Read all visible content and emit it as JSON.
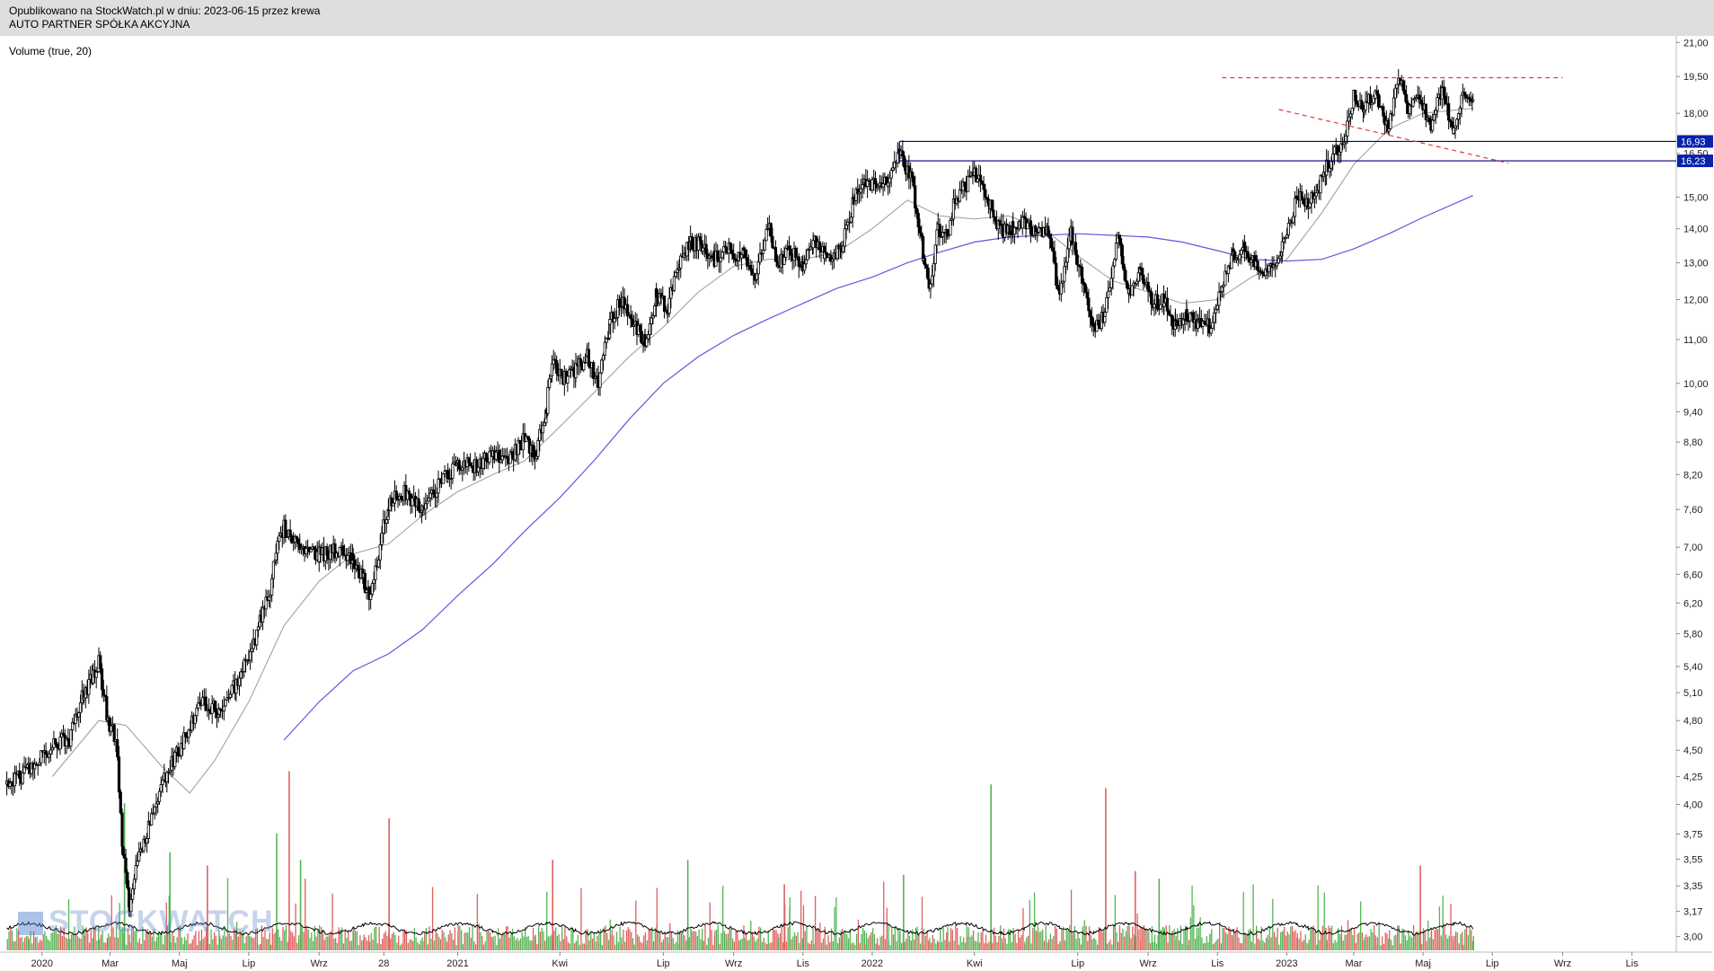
{
  "header": {
    "line1": "Opublikowano na StockWatch.pl w dniu: 2023-06-15 przez krewa",
    "line2": "AUTO PARTNER SPÓŁKA AKCYJNA"
  },
  "indicator_label": "Volume (true, 20)",
  "watermark": "STOCKWATCH",
  "colors": {
    "candle": "#000000",
    "sma_short": "#9a9a9a",
    "sma_long": "#5a5ae0",
    "level_line": "#00007a",
    "resistance_dash": "#e03a3a",
    "volume_up": "#55b555",
    "volume_down": "#e06060",
    "price_label_bg": "#0a22a8"
  },
  "chart_data": {
    "type": "candlestick",
    "price_axis": {
      "scale": "log",
      "range": [
        2.9,
        21.3
      ],
      "ticks": [
        "21,00",
        "19,50",
        "18,00",
        "16,50",
        "15,00",
        "14,00",
        "13,00",
        "12,00",
        "11,00",
        "10,00",
        "9,40",
        "8,80",
        "8,20",
        "7,60",
        "7,00",
        "6,60",
        "6,20",
        "5,80",
        "5,40",
        "5,10",
        "4,80",
        "4,50",
        "4,25",
        "4,00",
        "3,75",
        "3,55",
        "3,35",
        "3,17",
        "3,00"
      ]
    },
    "time_axis": {
      "ticks": [
        "2020",
        "Mar",
        "Maj",
        "Lip",
        "Wrz",
        "28",
        "2021",
        "Kwi",
        "Lip",
        "Wrz",
        "Lis",
        "2022",
        "Kwi",
        "Lip",
        "Wrz",
        "Lis",
        "2023",
        "Mar",
        "Maj",
        "Lip",
        "Wrz",
        "Lis"
      ]
    },
    "price_path": [
      [
        "2019-12-01",
        4.18
      ],
      [
        "2019-12-20",
        4.3
      ],
      [
        "2020-01-10",
        4.55
      ],
      [
        "2020-01-25",
        4.62
      ],
      [
        "2020-02-07",
        5.1
      ],
      [
        "2020-02-15",
        5.3
      ],
      [
        "2020-02-20",
        5.45
      ],
      [
        "2020-02-28",
        4.8
      ],
      [
        "2020-03-06",
        4.6
      ],
      [
        "2020-03-12",
        3.6
      ],
      [
        "2020-03-18",
        3.22
      ],
      [
        "2020-03-25",
        3.55
      ],
      [
        "2020-04-05",
        3.85
      ],
      [
        "2020-04-20",
        4.3
      ],
      [
        "2020-05-05",
        4.6
      ],
      [
        "2020-05-20",
        5.0
      ],
      [
        "2020-06-05",
        4.9
      ],
      [
        "2020-06-20",
        5.2
      ],
      [
        "2020-07-01",
        5.5
      ],
      [
        "2020-07-12",
        6.0
      ],
      [
        "2020-07-20",
        6.4
      ],
      [
        "2020-07-25",
        6.9
      ],
      [
        "2020-08-01",
        7.3
      ],
      [
        "2020-08-15",
        6.95
      ],
      [
        "2020-09-01",
        6.9
      ],
      [
        "2020-09-15",
        6.95
      ],
      [
        "2020-10-01",
        6.85
      ],
      [
        "2020-10-10",
        6.5
      ],
      [
        "2020-10-15",
        6.3
      ],
      [
        "2020-10-22",
        6.8
      ],
      [
        "2020-11-01",
        7.7
      ],
      [
        "2020-11-15",
        7.9
      ],
      [
        "2020-12-01",
        7.6
      ],
      [
        "2020-12-15",
        8.0
      ],
      [
        "2021-01-01",
        8.4
      ],
      [
        "2021-01-15",
        8.35
      ],
      [
        "2021-02-01",
        8.6
      ],
      [
        "2021-02-15",
        8.5
      ],
      [
        "2021-03-01",
        8.85
      ],
      [
        "2021-03-10",
        8.55
      ],
      [
        "2021-03-20",
        9.45
      ],
      [
        "2021-03-25",
        10.5
      ],
      [
        "2021-04-05",
        10.1
      ],
      [
        "2021-04-15",
        10.3
      ],
      [
        "2021-04-25",
        10.6
      ],
      [
        "2021-05-05",
        10.0
      ],
      [
        "2021-05-15",
        11.4
      ],
      [
        "2021-05-25",
        12.0
      ],
      [
        "2021-06-05",
        11.3
      ],
      [
        "2021-06-15",
        11.0
      ],
      [
        "2021-06-25",
        12.1
      ],
      [
        "2021-07-05",
        11.8
      ],
      [
        "2021-07-15",
        12.9
      ],
      [
        "2021-07-25",
        13.6
      ],
      [
        "2021-08-05",
        13.5
      ],
      [
        "2021-08-15",
        13.1
      ],
      [
        "2021-08-25",
        13.4
      ],
      [
        "2021-09-10",
        13.2
      ],
      [
        "2021-09-20",
        12.7
      ],
      [
        "2021-10-01",
        14.1
      ],
      [
        "2021-10-10",
        13.0
      ],
      [
        "2021-10-20",
        13.4
      ],
      [
        "2021-11-01",
        12.8
      ],
      [
        "2021-11-10",
        13.6
      ],
      [
        "2021-11-20",
        13.2
      ],
      [
        "2021-12-05",
        13.4
      ],
      [
        "2021-12-15",
        14.8
      ],
      [
        "2021-12-25",
        15.6
      ],
      [
        "2022-01-05",
        15.3
      ],
      [
        "2022-01-15",
        15.5
      ],
      [
        "2022-01-25",
        16.6
      ],
      [
        "2022-02-05",
        15.5
      ],
      [
        "2022-02-15",
        13.2
      ],
      [
        "2022-02-20",
        12.2
      ],
      [
        "2022-02-28",
        14.0
      ],
      [
        "2022-03-08",
        13.8
      ],
      [
        "2022-03-15",
        15.0
      ],
      [
        "2022-03-25",
        15.4
      ],
      [
        "2022-04-05",
        15.9
      ],
      [
        "2022-04-15",
        14.7
      ],
      [
        "2022-04-25",
        13.9
      ],
      [
        "2022-05-05",
        14.0
      ],
      [
        "2022-05-15",
        14.2
      ],
      [
        "2022-05-25",
        13.8
      ],
      [
        "2022-06-05",
        13.9
      ],
      [
        "2022-06-15",
        12.0
      ],
      [
        "2022-06-25",
        13.9
      ],
      [
        "2022-07-05",
        12.5
      ],
      [
        "2022-07-15",
        11.2
      ],
      [
        "2022-07-25",
        11.6
      ],
      [
        "2022-08-05",
        13.8
      ],
      [
        "2022-08-15",
        12.2
      ],
      [
        "2022-08-25",
        12.7
      ],
      [
        "2022-09-05",
        11.9
      ],
      [
        "2022-09-15",
        12.0
      ],
      [
        "2022-09-25",
        11.3
      ],
      [
        "2022-10-05",
        11.6
      ],
      [
        "2022-10-15",
        11.4
      ],
      [
        "2022-10-25",
        11.3
      ],
      [
        "2022-11-05",
        12.3
      ],
      [
        "2022-11-15",
        13.2
      ],
      [
        "2022-11-25",
        13.4
      ],
      [
        "2022-12-05",
        13.0
      ],
      [
        "2022-12-15",
        12.8
      ],
      [
        "2022-12-28",
        13.4
      ],
      [
        "2023-01-10",
        15.0
      ],
      [
        "2023-01-20",
        14.8
      ],
      [
        "2023-01-28",
        15.2
      ],
      [
        "2023-02-05",
        16.0
      ],
      [
        "2023-02-15",
        16.7
      ],
      [
        "2023-02-22",
        17.3
      ],
      [
        "2023-03-01",
        18.7
      ],
      [
        "2023-03-10",
        18.2
      ],
      [
        "2023-03-20",
        18.8
      ],
      [
        "2023-04-01",
        17.4
      ],
      [
        "2023-04-08",
        19.5
      ],
      [
        "2023-04-18",
        18.3
      ],
      [
        "2023-04-28",
        18.6
      ],
      [
        "2023-05-08",
        17.6
      ],
      [
        "2023-05-18",
        18.9
      ],
      [
        "2023-05-28",
        17.2
      ],
      [
        "2023-06-05",
        18.6
      ],
      [
        "2023-06-14",
        18.8
      ]
    ],
    "sma_short_path": [
      [
        "2020-01-10",
        4.25
      ],
      [
        "2020-02-20",
        4.8
      ],
      [
        "2020-03-15",
        4.75
      ],
      [
        "2020-04-15",
        4.35
      ],
      [
        "2020-05-10",
        4.1
      ],
      [
        "2020-06-01",
        4.4
      ],
      [
        "2020-07-01",
        5.0
      ],
      [
        "2020-08-01",
        5.9
      ],
      [
        "2020-09-01",
        6.5
      ],
      [
        "2020-10-01",
        6.9
      ],
      [
        "2020-11-01",
        7.05
      ],
      [
        "2020-12-01",
        7.5
      ],
      [
        "2021-01-01",
        7.9
      ],
      [
        "2021-02-01",
        8.2
      ],
      [
        "2021-03-01",
        8.45
      ],
      [
        "2021-04-01",
        9.1
      ],
      [
        "2021-05-01",
        9.8
      ],
      [
        "2021-06-01",
        10.6
      ],
      [
        "2021-07-01",
        11.3
      ],
      [
        "2021-08-01",
        12.2
      ],
      [
        "2021-09-01",
        12.9
      ],
      [
        "2021-10-01",
        13.1
      ],
      [
        "2021-11-01",
        13.1
      ],
      [
        "2021-12-01",
        13.3
      ],
      [
        "2022-01-01",
        14.0
      ],
      [
        "2022-02-01",
        14.9
      ],
      [
        "2022-03-01",
        14.4
      ],
      [
        "2022-04-01",
        14.3
      ],
      [
        "2022-05-01",
        14.4
      ],
      [
        "2022-06-01",
        14.0
      ],
      [
        "2022-07-01",
        13.2
      ],
      [
        "2022-08-01",
        12.5
      ],
      [
        "2022-09-01",
        12.2
      ],
      [
        "2022-10-01",
        11.9
      ],
      [
        "2022-11-01",
        12.0
      ],
      [
        "2022-12-01",
        12.6
      ],
      [
        "2023-01-01",
        13.1
      ],
      [
        "2023-02-01",
        14.5
      ],
      [
        "2023-03-01",
        16.1
      ],
      [
        "2023-04-01",
        17.4
      ],
      [
        "2023-05-01",
        18.0
      ],
      [
        "2023-06-14",
        18.2
      ]
    ],
    "sma_long_path": [
      [
        "2020-08-01",
        4.6
      ],
      [
        "2020-09-01",
        5.0
      ],
      [
        "2020-10-01",
        5.35
      ],
      [
        "2020-11-01",
        5.55
      ],
      [
        "2020-12-01",
        5.85
      ],
      [
        "2021-01-01",
        6.3
      ],
      [
        "2021-02-01",
        6.75
      ],
      [
        "2021-03-01",
        7.25
      ],
      [
        "2021-04-01",
        7.8
      ],
      [
        "2021-05-01",
        8.45
      ],
      [
        "2021-06-01",
        9.25
      ],
      [
        "2021-07-01",
        10.0
      ],
      [
        "2021-08-01",
        10.6
      ],
      [
        "2021-09-01",
        11.1
      ],
      [
        "2021-10-01",
        11.5
      ],
      [
        "2021-11-01",
        11.9
      ],
      [
        "2021-12-01",
        12.3
      ],
      [
        "2022-01-01",
        12.6
      ],
      [
        "2022-02-01",
        13.0
      ],
      [
        "2022-03-01",
        13.3
      ],
      [
        "2022-04-01",
        13.6
      ],
      [
        "2022-05-01",
        13.75
      ],
      [
        "2022-06-01",
        13.8
      ],
      [
        "2022-07-01",
        13.85
      ],
      [
        "2022-08-01",
        13.8
      ],
      [
        "2022-09-01",
        13.75
      ],
      [
        "2022-10-01",
        13.6
      ],
      [
        "2022-11-01",
        13.35
      ],
      [
        "2022-12-01",
        13.1
      ],
      [
        "2023-01-01",
        13.05
      ],
      [
        "2023-02-01",
        13.1
      ],
      [
        "2023-03-01",
        13.4
      ],
      [
        "2023-04-01",
        13.85
      ],
      [
        "2023-05-01",
        14.35
      ],
      [
        "2023-06-14",
        15.05
      ]
    ],
    "horizontal_levels": [
      {
        "label": "16,93",
        "value": 16.93,
        "from": "2022-01-25"
      },
      {
        "label": "16,23",
        "value": 16.23,
        "from": "2022-01-25"
      }
    ],
    "trendlines": [
      {
        "style": "dashed",
        "points": [
          [
            "2022-11-05",
            19.45
          ],
          [
            "2023-09-01",
            19.45
          ]
        ]
      },
      {
        "style": "dashed",
        "points": [
          [
            "2022-12-25",
            18.15
          ],
          [
            "2023-07-15",
            16.15
          ]
        ]
      }
    ],
    "volume_spikes": [
      [
        "2020-03-13",
        0.78
      ],
      [
        "2020-08-05",
        0.95
      ],
      [
        "2020-07-25",
        0.62
      ],
      [
        "2020-11-01",
        0.7
      ],
      [
        "2021-07-22",
        0.48
      ],
      [
        "2021-03-25",
        0.48
      ],
      [
        "2022-04-15",
        0.88
      ],
      [
        "2022-07-25",
        0.86
      ],
      [
        "2022-09-10",
        0.38
      ],
      [
        "2023-04-28",
        0.45
      ],
      [
        "2020-04-22",
        0.52
      ],
      [
        "2020-05-25",
        0.45
      ],
      [
        "2020-08-15",
        0.48
      ],
      [
        "2021-10-15",
        0.35
      ],
      [
        "2022-01-28",
        0.4
      ],
      [
        "2022-08-20",
        0.42
      ]
    ],
    "volume_avg_level": 0.12,
    "legend": "none",
    "grid": false
  }
}
